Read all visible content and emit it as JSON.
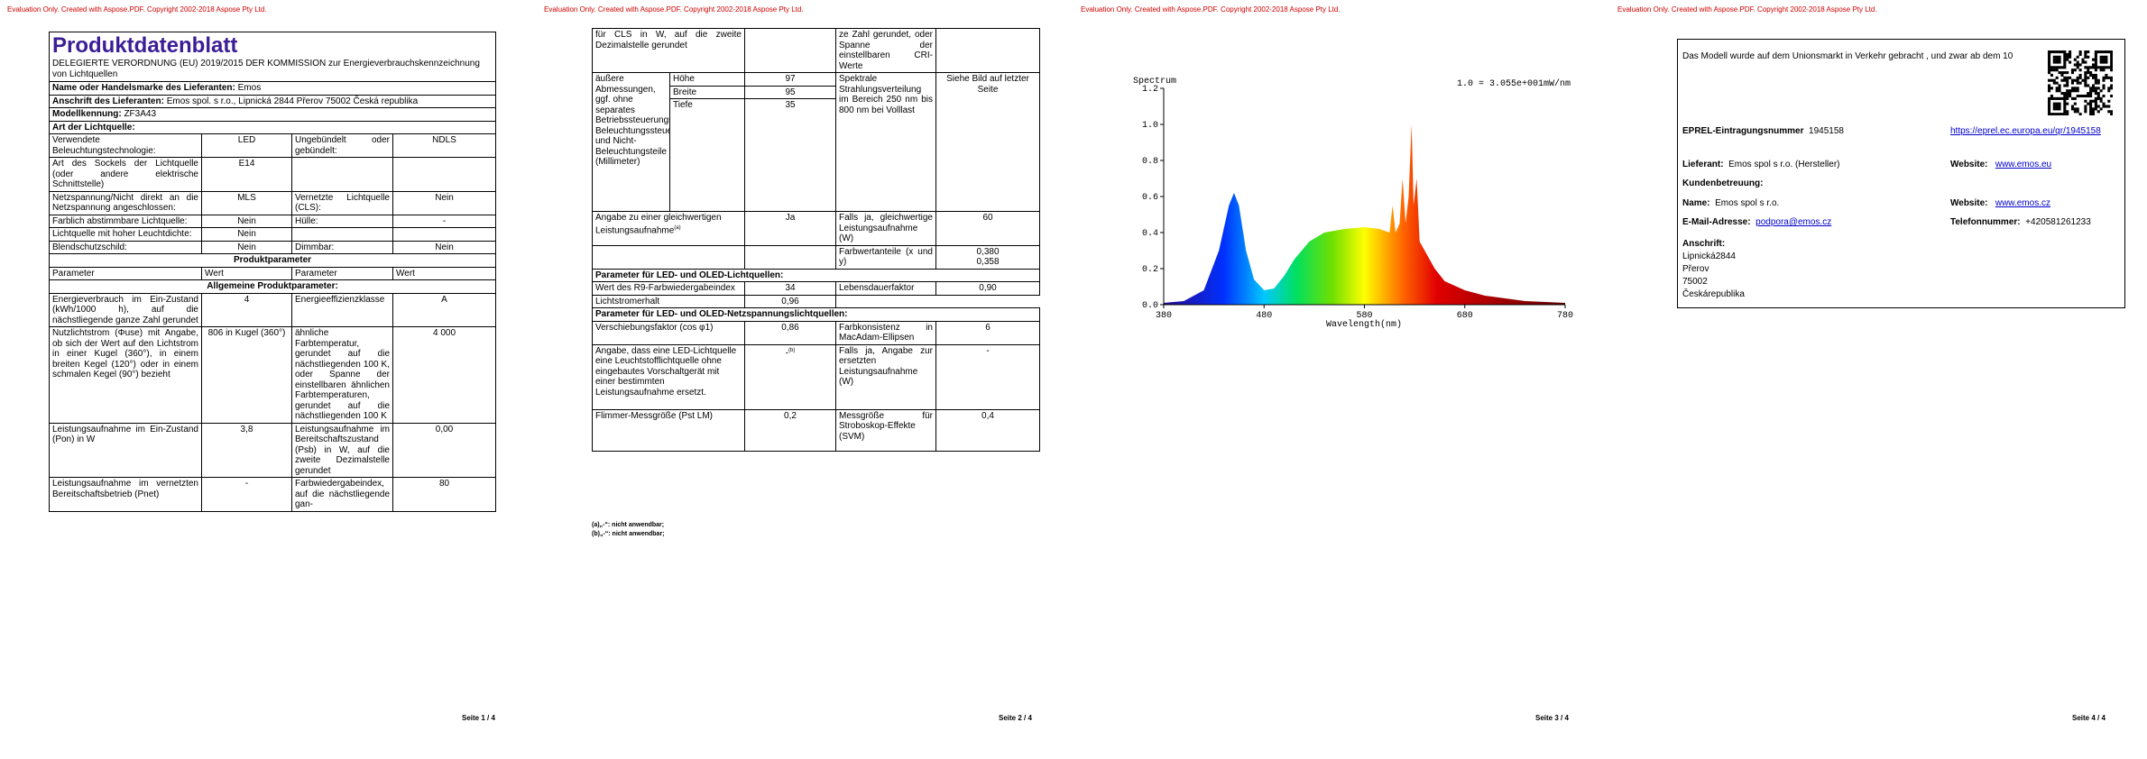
{
  "watermark": "Evaluation Only. Created with Aspose.PDF. Copyright 2002-2018 Aspose Pty Ltd.",
  "p1": {
    "title": "Produktdatenblatt",
    "subtitle": "DELEGIERTE VERORDNUNG (EU) 2019/2015 DER KOMMISSION zur Energieverbrauchskennzeichnung von Lichtquellen",
    "supplier_label": "Name oder Handelsmarke des Lieferanten:",
    "supplier": "Emos",
    "address_label": "Anschrift des Lieferanten:",
    "address": "Emos spol. s r.o., Lipnická 2844 Přerov 75002 Česká republika",
    "model_label": "Modellkennung:",
    "model": "ZF3A43",
    "type_heading": "Art der Lichtquelle:",
    "type_rows": [
      [
        "Verwendete Beleuchtungstechnologie:",
        "LED",
        "Ungebündelt oder gebündelt:",
        "NDLS"
      ],
      [
        "Art des Sockels der Lichtquelle (oder andere elektrische Schnittstelle)",
        "E14"
      ],
      [
        "Netzspannung/Nicht direkt an die Netzspannung angeschlossen:",
        "MLS",
        "Vernetzte Lichtquelle (CLS):",
        "Nein"
      ],
      [
        "Farblich abstimmbare Lichtquelle:",
        "Nein",
        "Hülle:",
        "-"
      ],
      [
        "Lichtquelle mit hoher Leuchtdichte:",
        "Nein"
      ],
      [
        "Blendschutzschild:",
        "Nein",
        "Dimmbar:",
        "Nein"
      ]
    ],
    "params_heading": "Produktparameter",
    "header": [
      "Parameter",
      "Wert",
      "Parameter",
      "Wert"
    ],
    "general_heading": "Allgemeine Produktparameter:",
    "general_rows": [
      [
        "Energieverbrauch im Ein-Zustand (kWh/1000 h), auf die nächstliegende ganze Zahl gerundet",
        "4",
        "Energieeffizienzklasse",
        "A"
      ],
      [
        "Nutzlichtstrom (Φuse) mit Angabe, ob sich der Wert auf den Lichtstrom in einer Kugel (360°), in einem breiten Kegel (120°) oder in einem schmalen Kegel (90°) bezieht",
        "806 in Kugel (360°)",
        "ähnliche Farbtemperatur, gerundet auf die nächstliegenden 100 K, oder Spanne der einstellbaren ähnlichen Farbtemperaturen, gerundet auf die nächstliegenden 100 K",
        "4 000"
      ],
      [
        "Leistungsaufnahme im Ein-Zustand (Pon) in W",
        "3,8",
        "Leistungsaufnahme im Bereitschaftszustand (Psb) in W, auf die zweite Dezimalstelle gerundet",
        "0,00"
      ],
      [
        "Leistungsaufnahme im vernetzten Bereitschaftsbetrieb (Pnet)",
        "-",
        "Farbwiedergabeindex, auf die nächstliegende gan-",
        "80"
      ]
    ],
    "page_number": "Seite 1 / 4"
  },
  "p2": {
    "cont": [
      "für CLS in W, auf die zweite Dezimalstelle gerundet",
      "ze Zahl gerundet, oder Spanne der einstellbaren CRI-Werte"
    ],
    "dims_label": "äußere Abmessungen, ggf. ohne separates Betriebssteuerungsteil, Beleuchtungssteuerungsteile und Nicht-Beleuchtungsteile (Millimeter)",
    "dims": [
      [
        "Höhe",
        "97"
      ],
      [
        "Breite",
        "95"
      ],
      [
        "Tiefe",
        "35"
      ]
    ],
    "spectrum_label": "Spektrale Strahlungsverteilung im Bereich 250 nm bis 800 nm bei Volllast",
    "spectrum_value": "Siehe Bild auf letzter Seite",
    "equiv_label": "Angabe zu einer gleichwertigen Leistungsaufnahme",
    "note_a": "(a)",
    "equiv_value": "Ja",
    "equiv_power_label": "Falls ja, gleichwertige Leistungsaufnahme (W)",
    "equiv_power": "60",
    "chroma_label": "Farbwertanteile (x und y)",
    "chroma": [
      "0,380",
      "0,358"
    ],
    "led_heading": "Parameter für LED- und OLED-Lichtquellen:",
    "r9_label": "Wert des R9-Farbwiedergabeindex",
    "r9": "34",
    "life_label": "Lebensdauerfaktor",
    "life": "0,90",
    "flux_label": "Lichtstromerhalt",
    "flux": "0,96",
    "mains_heading": "Parameter für LED- und OLED-Netzspannungslichtquellen:",
    "cos_label": "Verschiebungsfaktor (cos φ1)",
    "cos": "0,86",
    "macadam_label": "Farbkonsistenz in MacAdam-Ellipsen",
    "macadam": "6",
    "replace_label": "Angabe, dass eine LED-Lichtquelle eine Leuchtstofflichtquelle ohne eingebautes Vorschaltgerät mit einer bestimmten Leistungsaufnahme ersetzt.",
    "replace": "-",
    "note_b": "(b)",
    "replace_power_label": "Falls ja, Angabe zur ersetzten Leistungsaufnahme (W)",
    "replace_power": "-",
    "flicker_label": "Flimmer-Messgröße (Pst LM)",
    "flicker": "0,2",
    "svm_label": "Messgröße für Stroboskop-Effekte (SVM)",
    "svm": "0,4",
    "notes": [
      "(a)„-“: nicht anwendbar;",
      "(b)„-“: nicht anwendbar;"
    ],
    "page_number": "Seite 2 / 4"
  },
  "p3": {
    "title": "Spectrum",
    "scale_note": "1.0 = 3.055e+001mW/nm",
    "yticks": [
      "1.2",
      "1.0",
      "0.8",
      "0.6",
      "0.4",
      "0.2",
      "0.0"
    ],
    "xticks": [
      "380",
      "480",
      "580",
      "680",
      "780"
    ],
    "xlabel": "Wavelength(nm)",
    "page_number": "Seite 3 / 4"
  },
  "p4": {
    "intro": "Das Modell wurde auf dem Unionsmarkt in Verkehr gebracht , und zwar ab dem 10",
    "eprel_label": "EPREL-Eintragungsnummer",
    "eprel": "1945158",
    "eprel_link": "https://eprel.ec.europa.eu/qr/1945158",
    "supplier_label": "Lieferant:",
    "supplier": "Emos spol s r.o. (Hersteller)",
    "website_label": "Website:",
    "website": "www.emos.eu",
    "support_heading": "Kundenbetreuung:",
    "name_label": "Name:",
    "name": "Emos spol s r.o.",
    "support_website_label": "Website:",
    "support_website": "www.emos.cz",
    "email_label": "E-Mail-Adresse:",
    "email": "podpora@emos.cz",
    "phone_label": "Telefonnummer:",
    "phone": "+420581261233",
    "address_label": "Anschrift:",
    "address_lines": [
      "Lipnická2844",
      "Přerov",
      "75002",
      "Českárepublika"
    ],
    "page_number": "Seite 4 / 4"
  }
}
